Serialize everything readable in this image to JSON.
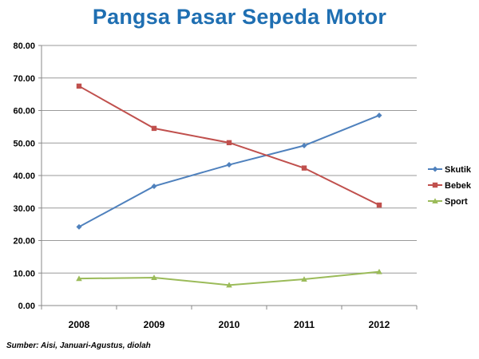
{
  "chart_data": {
    "type": "line",
    "title": "Pangsa Pasar Sepeda Motor",
    "x": [
      "2008",
      "2009",
      "2010",
      "2011",
      "2012"
    ],
    "series": [
      {
        "name": "Skutik",
        "color": "#4f81bd",
        "marker": "diamond",
        "values": [
          24.2,
          36.7,
          43.3,
          49.2,
          58.5
        ]
      },
      {
        "name": "Bebek",
        "color": "#c0504d",
        "marker": "square",
        "values": [
          67.5,
          54.5,
          50.1,
          42.3,
          30.9
        ]
      },
      {
        "name": "Sport",
        "color": "#9bbb59",
        "marker": "triangle",
        "values": [
          8.3,
          8.6,
          6.3,
          8.1,
          10.4
        ]
      }
    ],
    "ylim": [
      0,
      80
    ],
    "yticks": [
      "0.00",
      "10.00",
      "20.00",
      "30.00",
      "40.00",
      "50.00",
      "60.00",
      "70.00",
      "80.00"
    ],
    "grid": true,
    "legend": "right",
    "source": "Sumber: Aisi, Januari-Agustus, diolah"
  }
}
